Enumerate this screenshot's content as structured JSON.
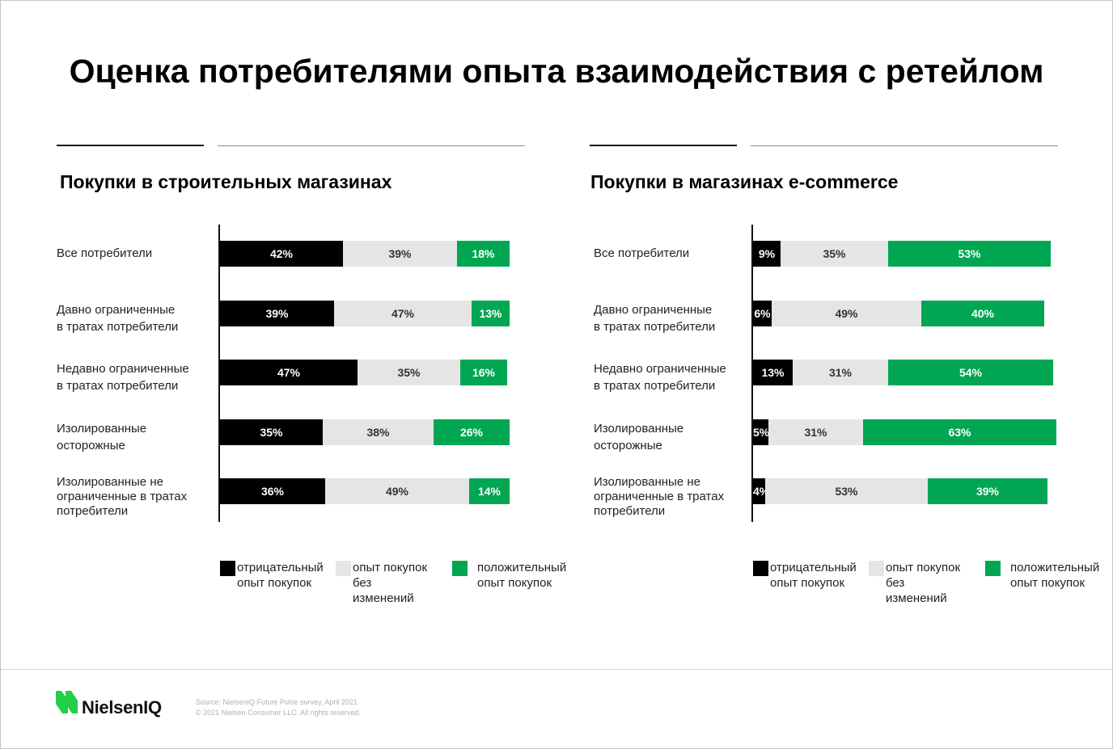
{
  "slide": {
    "title": "Оценка потребителями опыта взаимодействия с ретейлом"
  },
  "chart_data": [
    {
      "type": "bar",
      "horizontal": true,
      "stacked": true,
      "title": "Покупки в строительных магазинах",
      "categories": [
        "Все потребители",
        "Давно ограниченные\nв тратах потребители",
        "Недавно ограниченные\nв тратах потребители",
        "Изолированные\nосторожные",
        "Изолированные не\nограниченные в тратах\nпотребители"
      ],
      "series": [
        {
          "name": "отрицательный\nопыт покупок",
          "color": "#000000",
          "values": [
            42,
            39,
            47,
            35,
            36
          ],
          "labels": [
            "42%",
            "39%",
            "47%",
            "35%",
            "36%"
          ]
        },
        {
          "name": "опыт покупок\nбез\nизменений",
          "color": "#e5e5e5",
          "values": [
            39,
            47,
            35,
            38,
            49
          ],
          "labels": [
            "39%",
            "47%",
            "35%",
            "38%",
            "49%"
          ]
        },
        {
          "name": "положительный\nопыт покупок",
          "color": "#00a651",
          "values": [
            18,
            13,
            16,
            26,
            14
          ],
          "labels": [
            "18%",
            "13%",
            "16%",
            "26%",
            "14%"
          ]
        }
      ],
      "xlim": [
        0,
        100
      ],
      "grid": false,
      "legend": "bottom"
    },
    {
      "type": "bar",
      "horizontal": true,
      "stacked": true,
      "title": "Покупки в магазинах e-commerce",
      "categories": [
        "Все потребители",
        "Давно ограниченные\nв тратах потребители",
        "Недавно ограниченные\nв тратах потребители",
        "Изолированные\nосторожные",
        "Изолированные не\nограниченные в тратах\nпотребители"
      ],
      "series": [
        {
          "name": "отрицательный\nопыт покупок",
          "color": "#000000",
          "values": [
            9,
            6,
            13,
            5,
            4
          ],
          "labels": [
            "9%",
            "6%",
            "13%",
            "5%",
            "4%"
          ]
        },
        {
          "name": "опыт покупок\nбез\nизменений",
          "color": "#e5e5e5",
          "values": [
            35,
            49,
            31,
            31,
            53
          ],
          "labels": [
            "35%",
            "49%",
            "31%",
            "31%",
            "53%"
          ]
        },
        {
          "name": "положительный\nопыт покупок",
          "color": "#00a651",
          "values": [
            53,
            40,
            54,
            63,
            39
          ],
          "labels": [
            "53%",
            "40%",
            "54%",
            "63%",
            "39%"
          ]
        }
      ],
      "xlim": [
        0,
        100
      ],
      "grid": false,
      "legend": "bottom"
    }
  ],
  "footer": {
    "logo_icon": "nielseniq-logo-icon",
    "logo_color": "#22cf4b",
    "logo_text": "NielsenIQ",
    "source": "Source: NielsenIQ Future Pulse survey, April 2021",
    "copyright": "© 2021 Nielsen Consumer LLC. All rights reserved."
  }
}
